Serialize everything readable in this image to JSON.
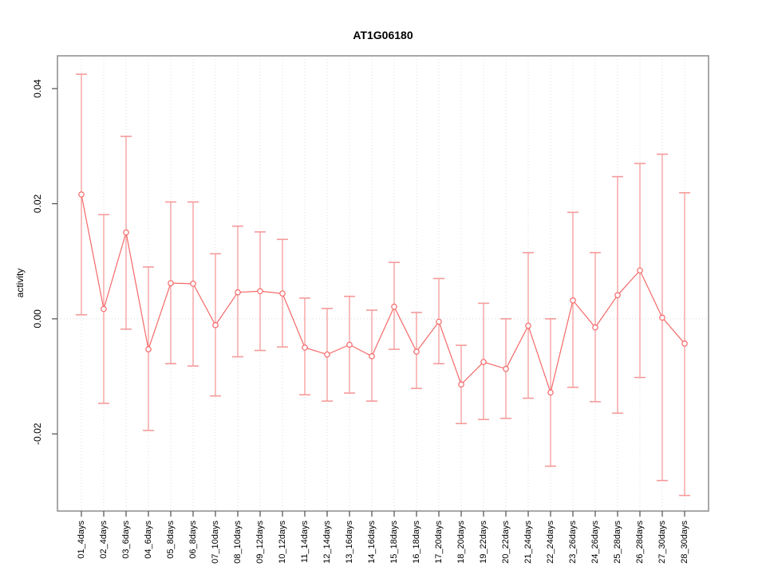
{
  "chart_data": {
    "type": "line",
    "title": "AT1G06180",
    "ylabel": "activity",
    "xlabel": "",
    "legend_position": "none",
    "grid": {
      "vertical_dotted": true,
      "horizontal_zero_dotted": true
    },
    "categories": [
      "01_4days",
      "02_4days",
      "03_6days",
      "04_6days",
      "05_8days",
      "06_8days",
      "07_10days",
      "08_10days",
      "09_12days",
      "10_12days",
      "11_14days",
      "12_14days",
      "13_16days",
      "14_16days",
      "15_18days",
      "16_18days",
      "17_20days",
      "18_20days",
      "19_22days",
      "20_22days",
      "21_24days",
      "22_24days",
      "23_26days",
      "24_26days",
      "25_28days",
      "26_28days",
      "27_30days",
      "28_30days"
    ],
    "series": [
      {
        "name": "activity",
        "marker": "open-circle",
        "values": [
          0.0216,
          0.0017,
          0.015,
          -0.0053,
          0.0062,
          0.0061,
          -0.0011,
          0.0046,
          0.0048,
          0.0044,
          -0.005,
          -0.0062,
          -0.0045,
          -0.0065,
          0.0021,
          -0.0057,
          -0.0005,
          -0.0114,
          -0.0075,
          -0.0087,
          -0.0012,
          -0.0128,
          0.0032,
          -0.0015,
          0.0041,
          0.0084,
          0.0002,
          -0.0043
        ],
        "error_high": [
          0.0425,
          0.0181,
          0.0317,
          0.009,
          0.0203,
          0.0203,
          0.0113,
          0.0161,
          0.0151,
          0.0138,
          0.0036,
          0.0018,
          0.0039,
          0.0015,
          0.0098,
          0.0011,
          0.007,
          -0.0046,
          0.0027,
          0.0,
          0.0115,
          0.0,
          0.0185,
          0.0115,
          0.0247,
          0.027,
          0.0286,
          0.0219
        ],
        "error_low": [
          0.0007,
          -0.0147,
          -0.0018,
          -0.0194,
          -0.0078,
          -0.0082,
          -0.0134,
          -0.0066,
          -0.0055,
          -0.0049,
          -0.0132,
          -0.0143,
          -0.0129,
          -0.0143,
          -0.0053,
          -0.0121,
          -0.0078,
          -0.0182,
          -0.0175,
          -0.0173,
          -0.0138,
          -0.0256,
          -0.0119,
          -0.0144,
          -0.0164,
          -0.0102,
          -0.0281,
          -0.0307
        ]
      }
    ],
    "yticks": [
      {
        "v": 0.04,
        "label": "0.04"
      },
      {
        "v": 0.02,
        "label": "0.02"
      },
      {
        "v": 0.0,
        "label": "0.00"
      },
      {
        "v": -0.02,
        "label": "-0.02"
      }
    ],
    "ylim": [
      -0.0334,
      0.0457
    ],
    "colors": {
      "series": "#f56868",
      "error_bar": "#f59a9a",
      "marker_fill": "#ffffff",
      "grid": "#dcdcdc",
      "zero_line": "#d8d8d8",
      "frame": "#8c8c8c",
      "tick": "#4d4d4d",
      "text": "#000000",
      "background": "#ffffff"
    }
  }
}
